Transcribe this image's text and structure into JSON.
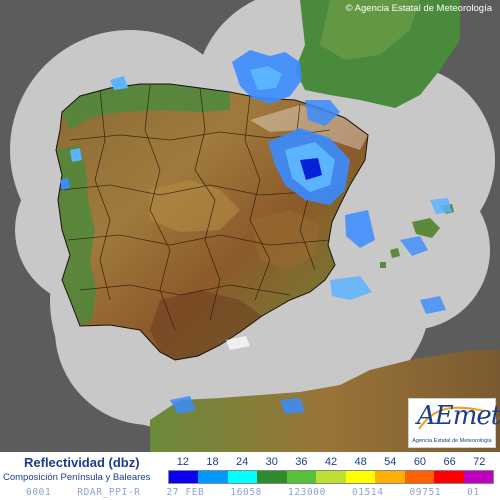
{
  "copyright": "© Agencia Estatal de Meteorología",
  "logo": {
    "brand": "AEmet",
    "subtitle": "Agencia Estatal de Meteorología"
  },
  "legend": {
    "title": "Reflectividad (dbz)",
    "subtitle": "Composición Península y Baleares",
    "labels": [
      "12",
      "18",
      "24",
      "30",
      "36",
      "42",
      "48",
      "54",
      "60",
      "66",
      "72"
    ],
    "colors": [
      "#0a00f0",
      "#0099ff",
      "#00ffff",
      "#2e8b2e",
      "#55c038",
      "#bfe030",
      "#ffff00",
      "#ffb000",
      "#ff6000",
      "#ff0000",
      "#c000c0"
    ]
  },
  "status_bar": [
    "0001",
    "RDAR_PPI-R",
    "27 FEB",
    "16058",
    "123000",
    "01514",
    "09751",
    "01"
  ],
  "map_colors": {
    "background": "#5c5c5c",
    "radar_coverage": "#c8c8c8",
    "sea_outside": "#5c5c5c",
    "land_low": "#3e7f3a",
    "land_mid": "#a47d3c",
    "land_high": "#7a4a22",
    "precip_light": "#3a8cff",
    "precip_mod": "#5ab4ff",
    "precip_heavy": "#0a20d8"
  }
}
